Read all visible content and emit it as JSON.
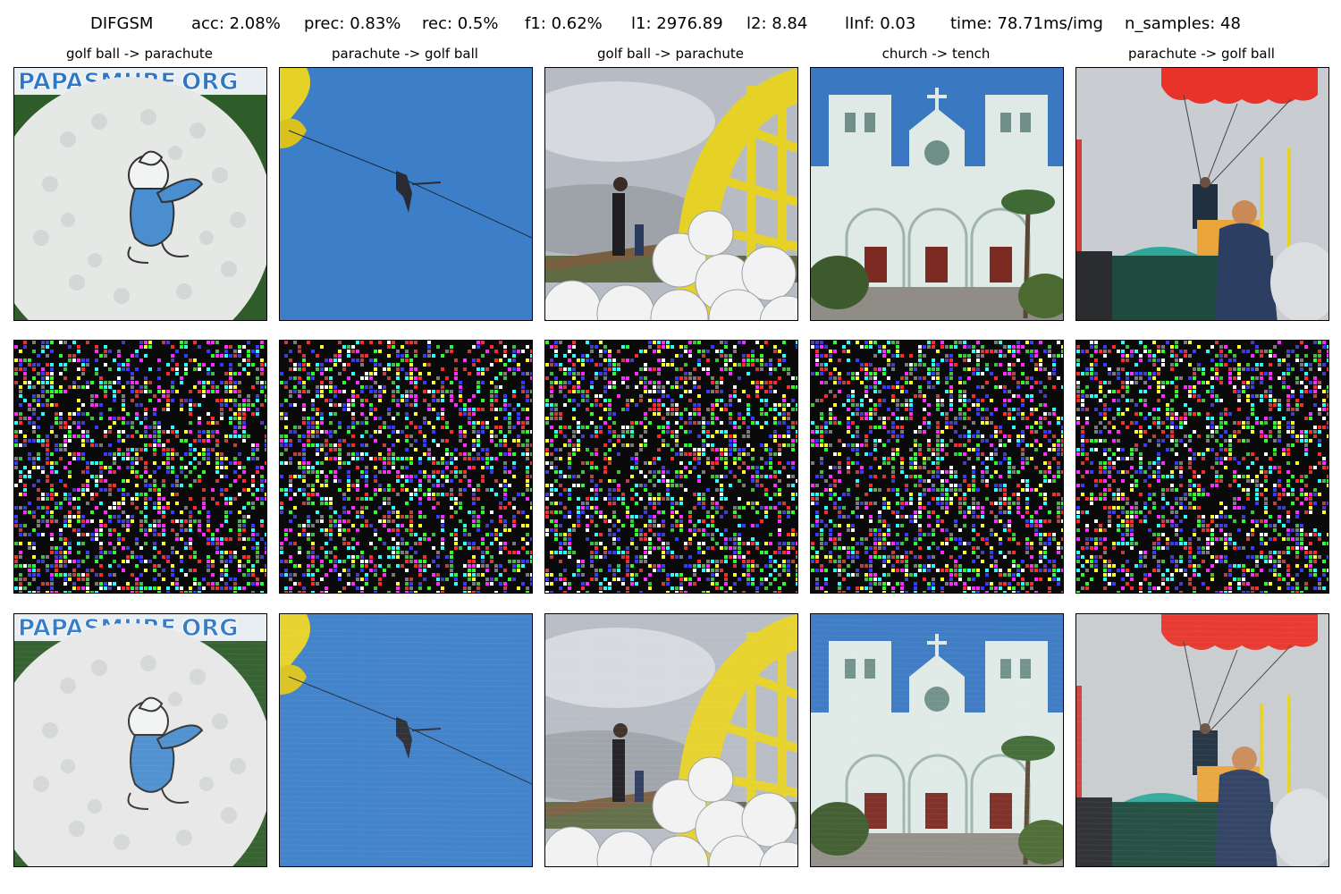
{
  "figure": {
    "title_metrics": [
      "DIFGSM",
      "acc: 2.08%",
      "prec: 0.83%",
      "rec: 0.5%",
      "f1: 0.62%",
      "l1: 2976.89",
      "l2: 8.84",
      "lInf: 0.03",
      "time: 78.71ms/img",
      "n_samples: 48"
    ],
    "columns": [
      {
        "title": "golf ball -> parachute",
        "scene": "golf-ball-smurf"
      },
      {
        "title": "parachute -> golf ball",
        "scene": "parasail-blue-sky"
      },
      {
        "title": "golf ball -> parachute",
        "scene": "golf-balls-basket"
      },
      {
        "title": "church -> tench",
        "scene": "white-church"
      },
      {
        "title": "parachute -> golf ball",
        "scene": "parachutist-crowd"
      }
    ],
    "rows": [
      "original",
      "perturbation",
      "adversarial"
    ],
    "colors": {
      "sky_blue": "#3c7fc8",
      "golf_ball": "#e6e8e6",
      "smurf_blue": "#4a8ed0",
      "yellow": "#e6d227",
      "church_white": "#dfeae6",
      "parachute_red": "#e8332a",
      "noise_bg": "#0a0a0a"
    }
  }
}
